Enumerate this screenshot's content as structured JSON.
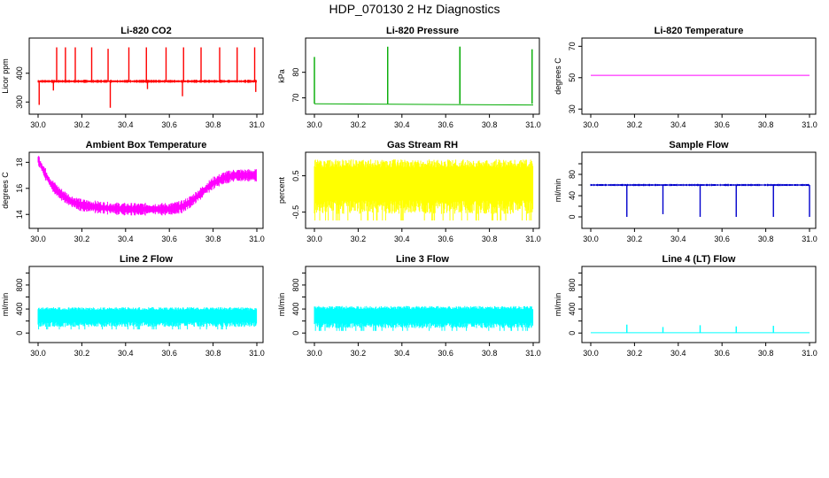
{
  "page": {
    "title": "HDP_070130  2 Hz Diagnostics"
  },
  "chart_data": [
    {
      "type": "line",
      "title": "Li-820 CO2",
      "ylabel": "Licor ppm",
      "color": "#ff0000",
      "xlim": [
        30.0,
        31.0
      ],
      "ylim": [
        270,
        510
      ],
      "xticks": [
        30.0,
        30.2,
        30.4,
        30.6,
        30.8,
        31.0
      ],
      "yticks": [
        300,
        400
      ],
      "xticklabels": [
        "30.0",
        "30.2",
        "30.4",
        "30.6",
        "30.8",
        "31.0"
      ],
      "yticklabels": [
        "300",
        "400"
      ],
      "series": [
        {
          "x": [
            30.0,
            31.0
          ],
          "y": [
            372,
            372
          ]
        }
      ],
      "band": {
        "center": 372,
        "halfwidth": 4
      },
      "spikes_up": [
        {
          "x": 30.085,
          "y": 490
        },
        {
          "x": 30.125,
          "y": 490
        },
        {
          "x": 30.17,
          "y": 490
        },
        {
          "x": 30.245,
          "y": 490
        },
        {
          "x": 30.32,
          "y": 485
        },
        {
          "x": 30.415,
          "y": 490
        },
        {
          "x": 30.495,
          "y": 490
        },
        {
          "x": 30.585,
          "y": 490
        },
        {
          "x": 30.665,
          "y": 490
        },
        {
          "x": 30.745,
          "y": 490
        },
        {
          "x": 30.83,
          "y": 490
        },
        {
          "x": 30.91,
          "y": 490
        },
        {
          "x": 30.99,
          "y": 490
        }
      ],
      "spikes_down": [
        {
          "x": 30.005,
          "y": 290
        },
        {
          "x": 30.33,
          "y": 280
        },
        {
          "x": 30.66,
          "y": 320
        },
        {
          "x": 30.995,
          "y": 335
        },
        {
          "x": 30.07,
          "y": 340
        },
        {
          "x": 30.5,
          "y": 345
        }
      ]
    },
    {
      "type": "line",
      "title": "Li-820 Pressure",
      "ylabel": "kPa",
      "color": "#00aa00",
      "xlim": [
        30.0,
        31.0
      ],
      "ylim": [
        65,
        92
      ],
      "xticks": [
        30.0,
        30.2,
        30.4,
        30.6,
        30.8,
        31.0
      ],
      "yticks": [
        70,
        80
      ],
      "xticklabels": [
        "30.0",
        "30.2",
        "30.4",
        "30.6",
        "30.8",
        "31.0"
      ],
      "yticklabels": [
        "70",
        "80"
      ],
      "series": [
        {
          "x": [
            30.0,
            31.0
          ],
          "y": [
            67.7,
            67.2
          ]
        }
      ],
      "spikes_up": [
        {
          "x": 30.0,
          "y": 86
        },
        {
          "x": 30.335,
          "y": 90
        },
        {
          "x": 30.665,
          "y": 90
        },
        {
          "x": 30.665,
          "y": 90
        },
        {
          "x": 30.995,
          "y": 89
        }
      ],
      "spikes_down": []
    },
    {
      "type": "line",
      "title": "Li-820 Temperature",
      "ylabel": "degrees C",
      "color": "#ff00ff",
      "xlim": [
        30.0,
        31.0
      ],
      "ylim": [
        29,
        73
      ],
      "xticks": [
        30.0,
        30.2,
        30.4,
        30.6,
        30.8,
        31.0
      ],
      "yticks": [
        30,
        50,
        70
      ],
      "xticklabels": [
        "30.0",
        "30.2",
        "30.4",
        "30.6",
        "30.8",
        "31.0"
      ],
      "yticklabels": [
        "30",
        "50",
        "70"
      ],
      "series": [
        {
          "x": [
            30.0,
            31.0
          ],
          "y": [
            51.5,
            51.5
          ]
        }
      ],
      "spikes_up": [],
      "spikes_down": []
    },
    {
      "type": "line",
      "title": "Ambient Box Temperature",
      "ylabel": "degrees C",
      "color": "#ff00ff",
      "xlim": [
        30.0,
        31.0
      ],
      "ylim": [
        13.2,
        18.5
      ],
      "xticks": [
        30.0,
        30.2,
        30.4,
        30.6,
        30.8,
        31.0
      ],
      "yticks": [
        14,
        16,
        18
      ],
      "xticklabels": [
        "30.0",
        "30.2",
        "30.4",
        "30.6",
        "30.8",
        "31.0"
      ],
      "yticklabels": [
        "14",
        "16",
        "18"
      ],
      "series": [
        {
          "x": [
            30.0,
            30.03,
            30.06,
            30.1,
            30.15,
            30.2,
            30.3,
            30.4,
            30.5,
            30.6,
            30.66,
            30.7,
            30.75,
            30.8,
            30.85,
            30.9,
            31.0
          ],
          "y": [
            18.2,
            17.2,
            16.3,
            15.6,
            15.0,
            14.7,
            14.5,
            14.4,
            14.4,
            14.4,
            14.6,
            15.0,
            15.7,
            16.4,
            16.8,
            17.0,
            17.0
          ]
        }
      ],
      "band": {
        "halfwidth": 0.35
      },
      "spikes_up": [],
      "spikes_down": []
    },
    {
      "type": "line",
      "title": "Gas Stream RH",
      "ylabel": "percent",
      "color": "#ffff00",
      "xlim": [
        30.0,
        31.0
      ],
      "ylim": [
        -0.85,
        1.05
      ],
      "xticks": [
        30.0,
        30.2,
        30.4,
        30.6,
        30.8,
        31.0
      ],
      "yticks": [
        -0.5,
        0.5
      ],
      "xticklabels": [
        "30.0",
        "30.2",
        "30.4",
        "30.6",
        "30.8",
        "31.0"
      ],
      "yticklabels": [
        "-0.5",
        "0.5"
      ],
      "series": [
        {
          "x": [
            30.0,
            31.0
          ],
          "y": [
            0.2,
            0.2
          ]
        }
      ],
      "band": {
        "low": -0.55,
        "high": 0.95
      },
      "spikes_up": [],
      "spikes_down": []
    },
    {
      "type": "line",
      "title": "Sample Flow",
      "ylabel": "ml/min",
      "color": "#0000cc",
      "xlim": [
        30.0,
        31.0
      ],
      "ylim": [
        -15,
        115
      ],
      "xticks": [
        30.0,
        30.2,
        30.4,
        30.6,
        30.8,
        31.0
      ],
      "yticks": [
        0,
        20,
        40,
        60,
        80,
        100
      ],
      "xticklabels": [
        "30.0",
        "30.2",
        "30.4",
        "30.6",
        "30.8",
        "31.0"
      ],
      "yticklabels": [
        "0",
        "",
        "40",
        "",
        "80",
        ""
      ],
      "series": [
        {
          "x": [
            30.0,
            31.0
          ],
          "y": [
            60,
            60
          ]
        }
      ],
      "band": {
        "center": 60,
        "halfwidth": 1.5
      },
      "spikes_up": [],
      "spikes_down": [
        {
          "x": 30.165,
          "y": 0
        },
        {
          "x": 30.33,
          "y": 5
        },
        {
          "x": 30.5,
          "y": 0
        },
        {
          "x": 30.665,
          "y": 0
        },
        {
          "x": 30.835,
          "y": 0
        },
        {
          "x": 31.0,
          "y": 0
        }
      ]
    },
    {
      "type": "line",
      "title": "Line 2 Flow",
      "ylabel": "ml/min",
      "color": "#00ffff",
      "xlim": [
        30.0,
        31.0
      ],
      "ylim": [
        -100,
        1050
      ],
      "xticks": [
        30.0,
        30.2,
        30.4,
        30.6,
        30.8,
        31.0
      ],
      "yticks": [
        0,
        200,
        400,
        600,
        800,
        1000
      ],
      "xticklabels": [
        "30.0",
        "30.2",
        "30.4",
        "30.6",
        "30.8",
        "31.0"
      ],
      "yticklabels": [
        "0",
        "",
        "400",
        "",
        "800",
        ""
      ],
      "series": [
        {
          "x": [
            30.0,
            31.0
          ],
          "y": [
            270,
            270
          ]
        }
      ],
      "band": {
        "low": 100,
        "high": 430
      },
      "spikes_up": [],
      "spikes_down": []
    },
    {
      "type": "line",
      "title": "Line 3 Flow",
      "ylabel": "ml/min",
      "color": "#00ffff",
      "xlim": [
        30.0,
        31.0
      ],
      "ylim": [
        -100,
        1050
      ],
      "xticks": [
        30.0,
        30.2,
        30.4,
        30.6,
        30.8,
        31.0
      ],
      "yticks": [
        0,
        200,
        400,
        600,
        800,
        1000
      ],
      "xticklabels": [
        "30.0",
        "30.2",
        "30.4",
        "30.6",
        "30.8",
        "31.0"
      ],
      "yticklabels": [
        "0",
        "",
        "400",
        "",
        "800",
        ""
      ],
      "series": [
        {
          "x": [
            30.0,
            31.0
          ],
          "y": [
            270,
            270
          ]
        }
      ],
      "band": {
        "low": 80,
        "high": 450
      },
      "spikes_up": [],
      "spikes_down": []
    },
    {
      "type": "line",
      "title": "Line 4 (LT) Flow",
      "ylabel": "ml/min",
      "color": "#00ffff",
      "xlim": [
        30.0,
        31.0
      ],
      "ylim": [
        -100,
        1050
      ],
      "xticks": [
        30.0,
        30.2,
        30.4,
        30.6,
        30.8,
        31.0
      ],
      "yticks": [
        0,
        200,
        400,
        600,
        800,
        1000
      ],
      "xticklabels": [
        "30.0",
        "30.2",
        "30.4",
        "30.6",
        "30.8",
        "31.0"
      ],
      "yticklabels": [
        "0",
        "",
        "400",
        "",
        "800",
        ""
      ],
      "series": [
        {
          "x": [
            30.0,
            31.0
          ],
          "y": [
            5,
            5
          ]
        }
      ],
      "spikes_up": [
        {
          "x": 30.165,
          "y": 140
        },
        {
          "x": 30.33,
          "y": 100
        },
        {
          "x": 30.5,
          "y": 130
        },
        {
          "x": 30.665,
          "y": 110
        },
        {
          "x": 30.835,
          "y": 120
        }
      ],
      "spikes_down": []
    }
  ]
}
